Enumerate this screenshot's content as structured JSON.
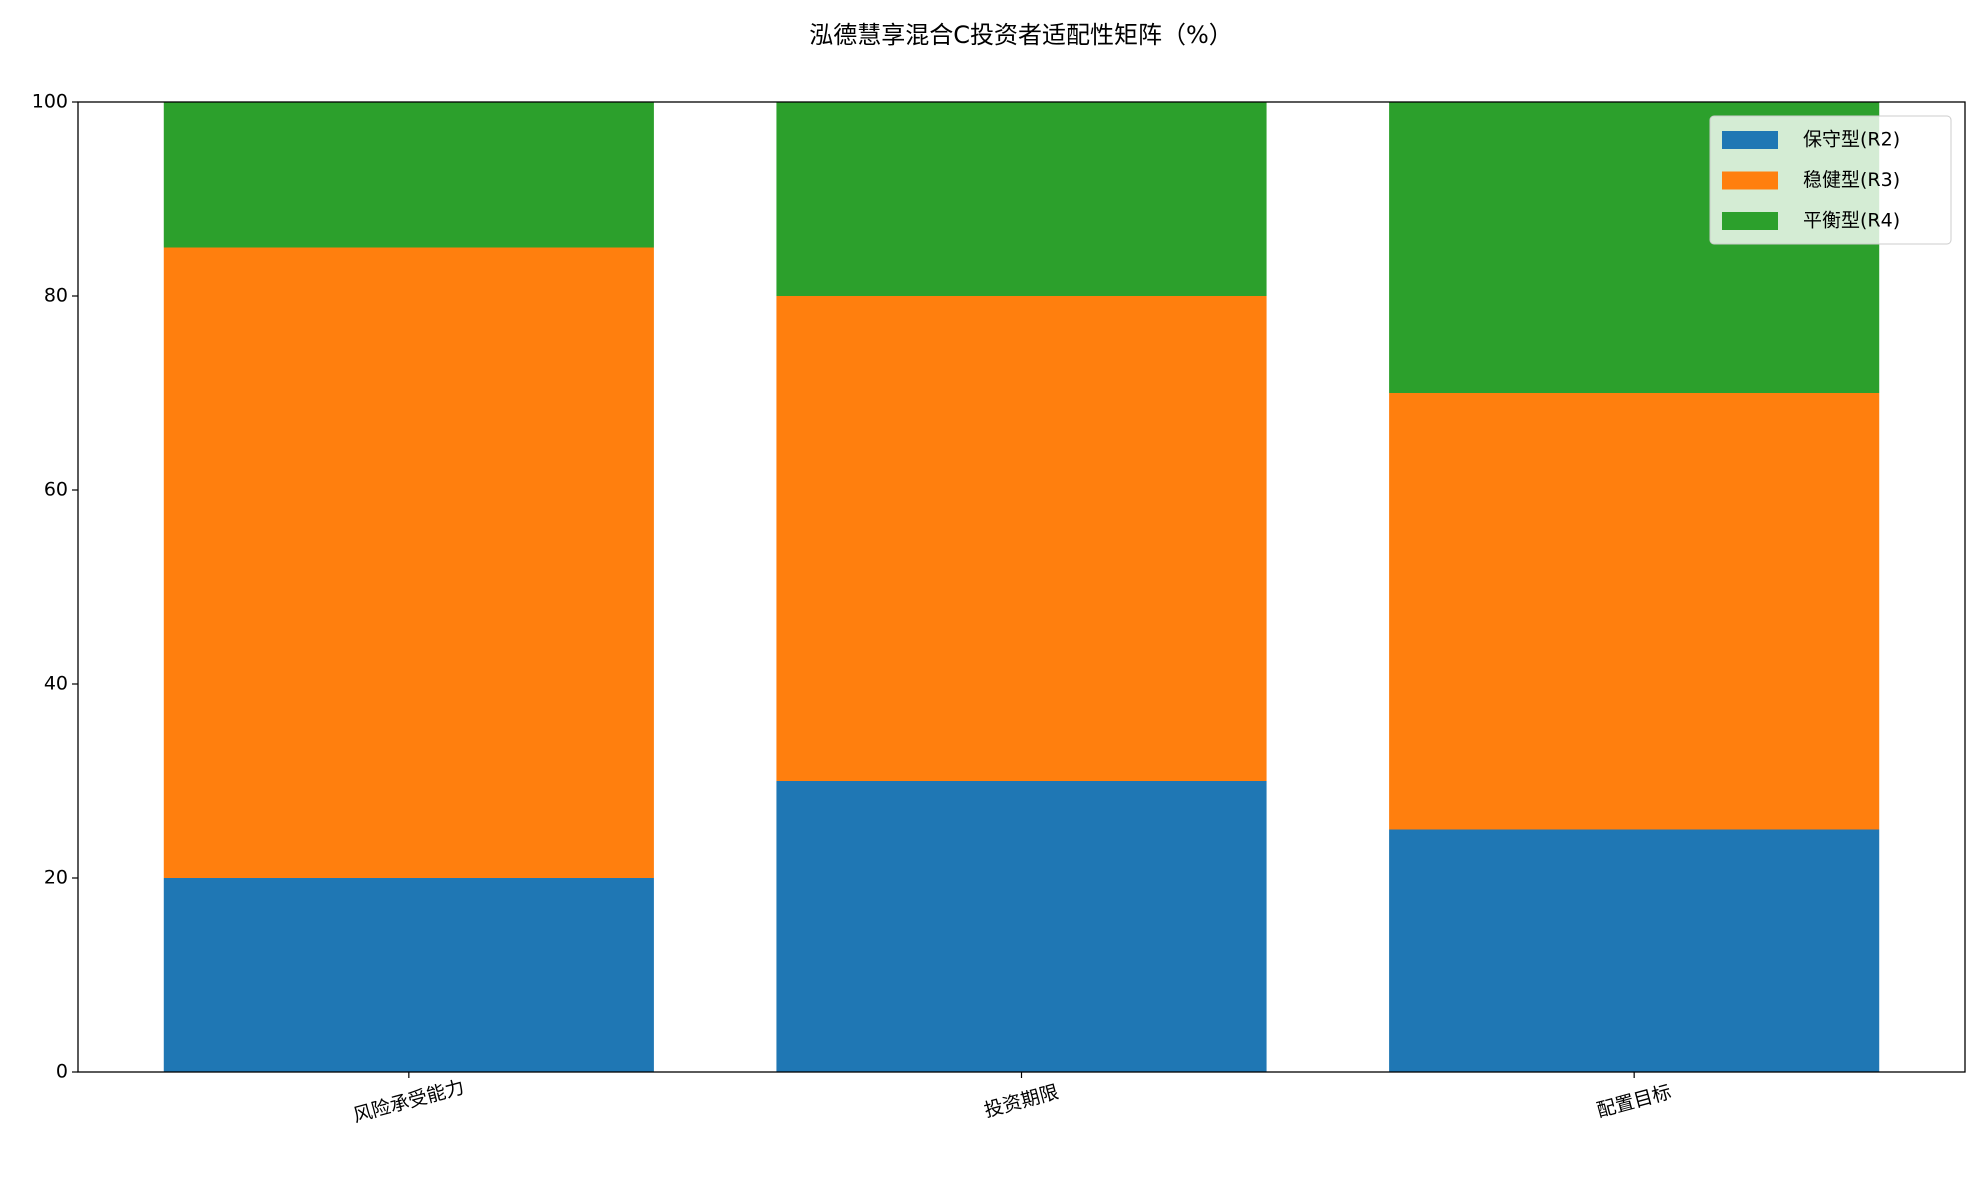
{
  "chart_data": {
    "type": "stacked_bar",
    "title": "泓德慧享混合C投资者适配性矩阵（%）",
    "categories": [
      "风险承受能力",
      "投资期限",
      "配置目标"
    ],
    "series": [
      {
        "name": "保守型(R2)",
        "color": "#1f77b4",
        "values": [
          20,
          30,
          25
        ]
      },
      {
        "name": "稳健型(R3)",
        "color": "#ff7f0e",
        "values": [
          65,
          50,
          45
        ]
      },
      {
        "name": "平衡型(R4)",
        "color": "#2ca02c",
        "values": [
          15,
          20,
          30
        ]
      }
    ],
    "ylim": [
      0,
      100
    ],
    "yticks": [
      0,
      20,
      40,
      60,
      80,
      100
    ],
    "legend": "upper right"
  }
}
